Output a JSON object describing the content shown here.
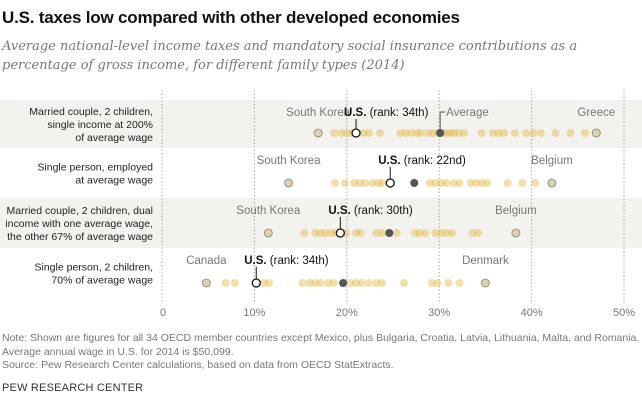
{
  "title": "U.S. taxes low compared with other developed economies",
  "subtitle": "Average national-level income taxes and mandatory social insurance contributions as a percentage of gross income, for different family types (2014)",
  "note": "Note: Shown are figures for all 34 OECD member countries except Mexico, plus Bulgaria, Croatia, Latvia, Lithuania, Malta, and Romania. Average annual wage in U.S. for 2014 is $50,099.",
  "source": "Source: Pew Research Center calculations, based on data from OECD StatExtracts.",
  "brand": "PEW RESEARCH CENTER",
  "colors": {
    "dot": "#e3b84a",
    "dot_min_max": "#dcd2b0",
    "average": "#555555",
    "us_fill": "#ffffff",
    "us_stroke": "#111111",
    "band": "#f3f2ee"
  },
  "chart_data": {
    "type": "scatter",
    "title": "U.S. taxes low compared with other developed economies",
    "xlabel": "",
    "ylabel": "",
    "xlim": [
      0,
      50
    ],
    "x_ticks": [
      "0",
      "10%",
      "20%",
      "30%",
      "40%",
      "50%"
    ],
    "x_tick_values": [
      0,
      10,
      20,
      30,
      40,
      50
    ],
    "grid": true,
    "series": [
      {
        "name": "Married couple, 2 children, single income at 200% of average wage",
        "label_lines": [
          "Married couple, 2 children,",
          "single income at 200%",
          "of average wage"
        ],
        "shaded": true,
        "min_country": "South Korea",
        "min_value": 16.9,
        "max_country": "Greece",
        "max_value": 47.0,
        "us_label_bold": "U.S.",
        "us_label_rest": " (rank: 34th)",
        "us_value": 21.0,
        "average_label": "Average",
        "average_value": 30.1,
        "values": [
          16.9,
          18.6,
          19.4,
          20.0,
          20.6,
          21.8,
          22.4,
          23.6,
          25.8,
          26.4,
          27.0,
          27.6,
          28.0,
          28.8,
          29.3,
          29.8,
          30.4,
          30.8,
          31.2,
          31.6,
          32.1,
          32.7,
          34.6,
          35.8,
          36.4,
          37.0,
          38.2,
          39.4,
          40.2,
          41.0,
          42.6,
          44.2,
          45.8,
          47.0
        ]
      },
      {
        "name": "Single person, employed at average wage",
        "label_lines": [
          "Single person, employed",
          "at average wage"
        ],
        "shaded": false,
        "min_country": "South Korea",
        "min_value": 13.7,
        "max_country": "Belgium",
        "max_value": 42.2,
        "us_label_bold": "U.S.",
        "us_label_rest": " (rank: 22nd)",
        "us_value": 24.7,
        "average_label": "",
        "average_value": 27.3,
        "values": [
          13.7,
          18.7,
          19.8,
          20.8,
          21.4,
          22.0,
          22.8,
          23.4,
          23.8,
          24.7,
          27.3,
          29.0,
          29.6,
          30.2,
          30.8,
          31.6,
          32.2,
          33.4,
          34.0,
          34.6,
          35.2,
          37.4,
          39.0,
          40.4,
          42.2
        ]
      },
      {
        "name": "Married couple, 2 children, dual income with one average wage, the other 67% of average wage",
        "label_lines": [
          "Married couple, 2 children, dual",
          "income with one average wage,",
          "the other 67% of average wage"
        ],
        "shaded": true,
        "min_country": "South Korea",
        "min_value": 11.5,
        "max_country": "Belgium",
        "max_value": 38.3,
        "us_label_bold": "U.S.",
        "us_label_rest": " (rank: 30th)",
        "us_value": 19.3,
        "average_label": "",
        "average_value": 24.6,
        "values": [
          11.5,
          15.4,
          16.6,
          17.2,
          17.7,
          18.3,
          18.8,
          19.3,
          19.9,
          21.0,
          21.5,
          23.2,
          23.8,
          24.6,
          25.4,
          27.4,
          27.9,
          28.5,
          29.6,
          30.2,
          30.8,
          31.4,
          33.6,
          34.2,
          38.3
        ]
      },
      {
        "name": "Single person, 2 children, 70% of average wage",
        "label_lines": [
          "Single person, 2 children,",
          "70% of average wage"
        ],
        "shaded": false,
        "min_country": "Canada",
        "min_value": 4.8,
        "max_country": "Denmark",
        "max_value": 35.0,
        "us_label_bold": "U.S.",
        "us_label_rest": " (rank: 34th)",
        "us_value": 10.2,
        "average_label": "",
        "average_value": 19.6,
        "values": [
          4.8,
          6.9,
          7.9,
          10.2,
          11.0,
          11.6,
          15.2,
          16.0,
          16.6,
          17.2,
          18.0,
          18.6,
          19.6,
          20.4,
          21.0,
          21.6,
          22.4,
          23.2,
          23.8,
          26.2,
          29.2,
          29.8,
          31.0,
          32.2,
          35.0
        ]
      }
    ]
  }
}
